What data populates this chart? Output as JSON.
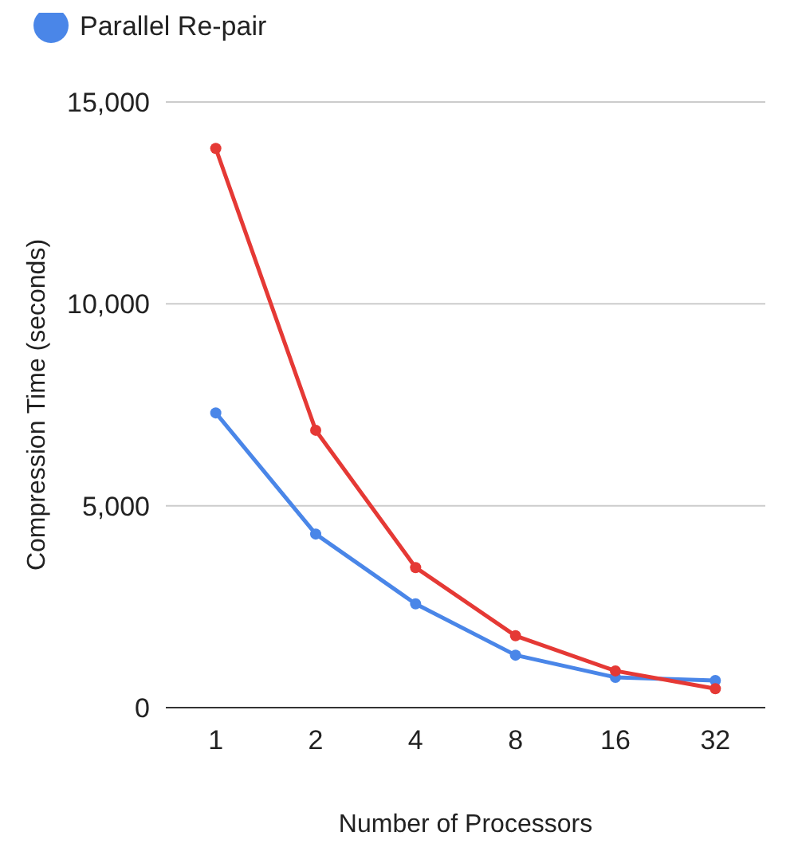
{
  "chart_data": {
    "type": "line",
    "xlabel": "Number of Processors",
    "ylabel": "Compression Time (seconds)",
    "categories": [
      "1",
      "2",
      "4",
      "8",
      "16",
      "32"
    ],
    "series": [
      {
        "name": "Parallel Re-pair",
        "color": "#4a86e8",
        "values": [
          7300,
          4300,
          2570,
          1300,
          750,
          670
        ]
      },
      {
        "color": "#e53935",
        "values": [
          13850,
          6870,
          3470,
          1780,
          910,
          470
        ]
      }
    ],
    "ylim": [
      0,
      15000
    ],
    "yticks": [
      {
        "value": 0,
        "label": "0"
      },
      {
        "value": 5000,
        "label": "5,000"
      },
      {
        "value": 10000,
        "label": "10,000"
      },
      {
        "value": 15000,
        "label": "15,000"
      }
    ],
    "grid": "y",
    "legend": "top",
    "marker": "circle"
  }
}
